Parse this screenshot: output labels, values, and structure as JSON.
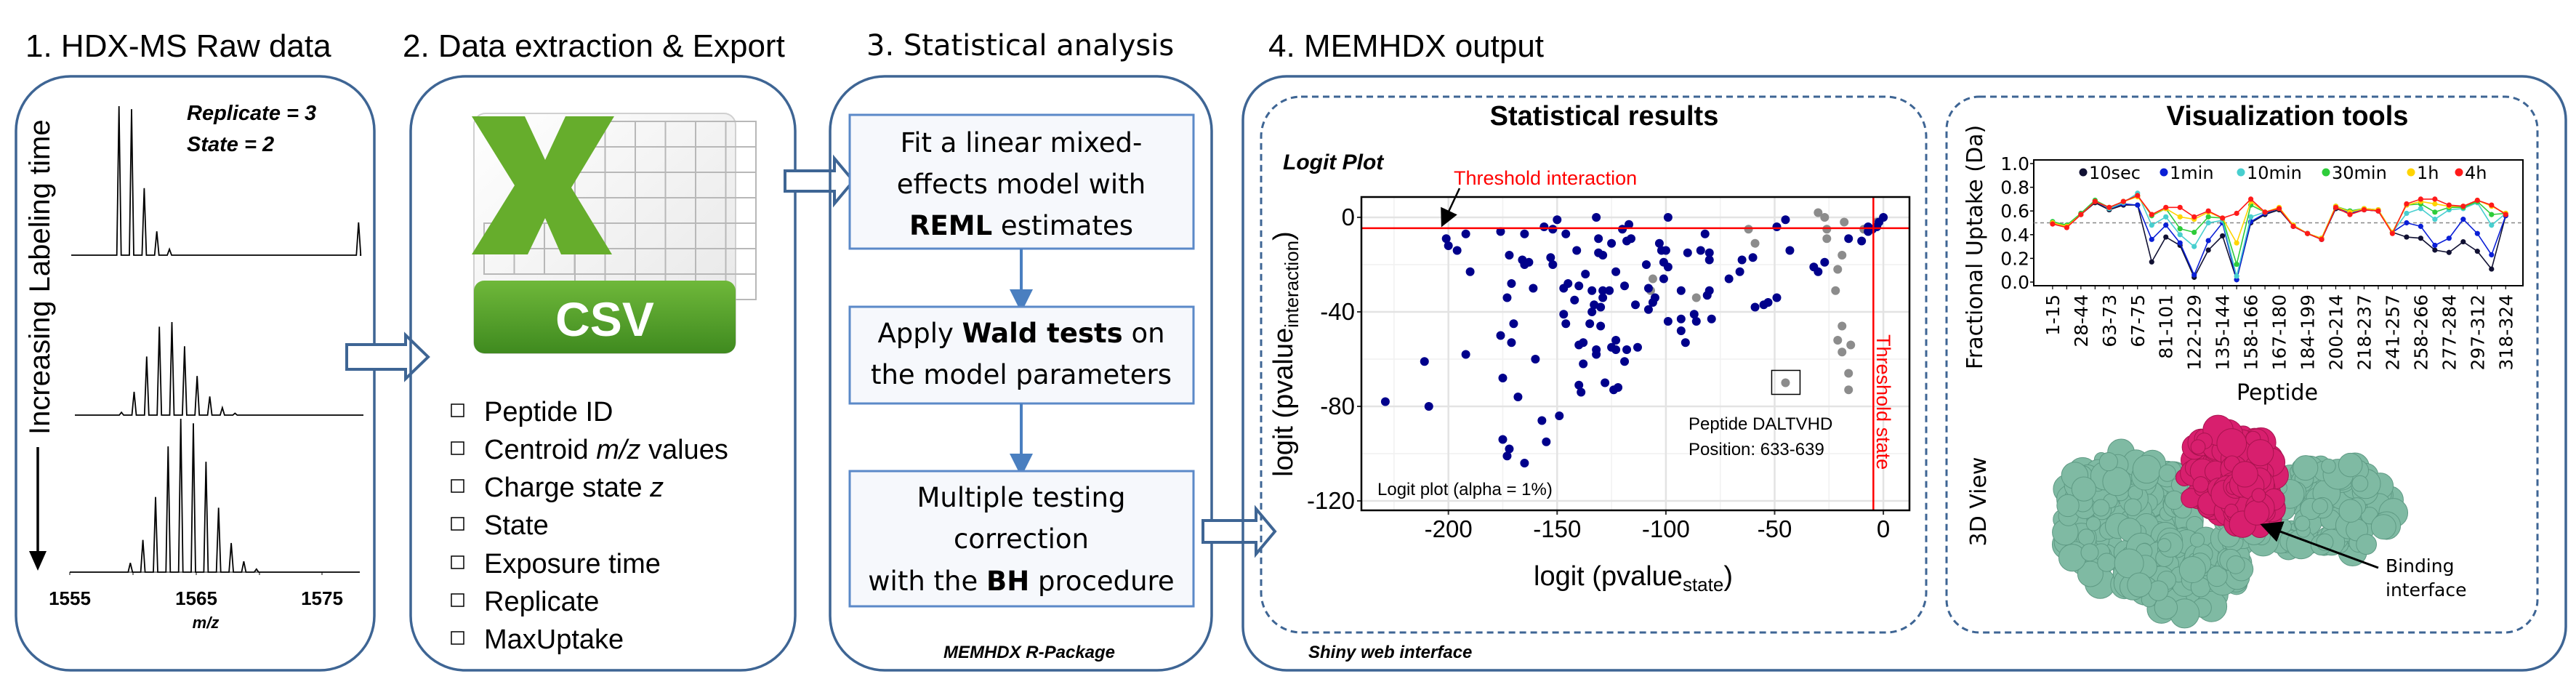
{
  "colors": {
    "panel": "#3e6594",
    "step_box": "#5b89c8",
    "threshold": "#ff0000",
    "significant": "#00008b",
    "non_significant": "#8c8c8c",
    "protein": "#7fbaa3",
    "interface": "#d81f6e",
    "csv_green": "#5aa02c"
  },
  "panel1": {
    "title": "1. HDX-MS Raw data",
    "replicate": "Replicate = 3",
    "state": "State = 2",
    "time_label": "Increasing Labeling time",
    "x_ticks": [
      "1555",
      "1565",
      "1575"
    ],
    "x_label": "m/z",
    "spectra": [
      {
        "start_mz": 1558.9,
        "spacing": 1.0,
        "intensities": [
          100,
          98,
          45,
          16,
          4
        ],
        "extra_peak": {
          "mz": 1577.9,
          "intensity": 22
        }
      },
      {
        "start_mz": 1559.1,
        "spacing": 1.0,
        "intensities": [
          3,
          25,
          63,
          95,
          100,
          74,
          42,
          20,
          8,
          2
        ]
      },
      {
        "start_mz": 1559.8,
        "spacing": 1.0,
        "intensities": [
          6,
          21,
          49,
          82,
          100,
          97,
          72,
          42,
          19,
          7,
          2
        ]
      }
    ]
  },
  "panel2": {
    "title": "2. Data extraction & Export",
    "icon_label": "CSV",
    "items": [
      {
        "pre": "Peptide ID",
        "ital": "",
        "post": ""
      },
      {
        "pre": "Centroid ",
        "ital": "m/z",
        "post": " values"
      },
      {
        "pre": "Charge state ",
        "ital": "z",
        "post": ""
      },
      {
        "pre": "State",
        "ital": "",
        "post": ""
      },
      {
        "pre": "Exposure time",
        "ital": "",
        "post": ""
      },
      {
        "pre": "Replicate",
        "ital": "",
        "post": ""
      },
      {
        "pre": "MaxUptake",
        "ital": "",
        "post": ""
      }
    ]
  },
  "panel3": {
    "title": "3. Statistical analysis",
    "step1": {
      "l1": "Fit a linear mixed-",
      "l2": "effects model with",
      "l3b": "REML",
      "l3": " estimates"
    },
    "step2": {
      "l1a": "Apply ",
      "l1b": "Wald tests",
      "l1c": " on",
      "l2": "the model parameters"
    },
    "step3": {
      "l1": "Multiple testing",
      "l2": "correction",
      "l3a": "with the ",
      "l3b": "BH",
      "l3c": " procedure"
    },
    "footer": "MEMHDX R-Package"
  },
  "panel4": {
    "title": "4. MEMHDX output",
    "footer": "Shiny web interface",
    "stats_title": "Statistical results",
    "viz_title": "Visualization tools",
    "view3d_label": "3D View",
    "binding_l1": "Binding",
    "binding_l2": "interface"
  },
  "chart_data": [
    {
      "type": "scatter",
      "title": "Logit Plot",
      "xlabel": "logit (pvalue",
      "xlabel_sub": "state",
      "ylabel": "logit (pvalue",
      "ylabel_sub": "interaction",
      "xlim": [
        -240,
        12
      ],
      "ylim": [
        -124,
        8.6
      ],
      "x_ticks": [
        -200,
        -150,
        -100,
        -50,
        0
      ],
      "y_ticks": [
        0,
        -40,
        -80,
        -120
      ],
      "grid": true,
      "threshold_interaction": -4.6,
      "threshold_state": -4.6,
      "threshold_interaction_label": "Threshold interaction",
      "threshold_state_label": "Threshold state",
      "note": "Logit plot (alpha = 1%)",
      "highlight": {
        "x": -45,
        "y": -70,
        "l1": "Peptide DALTVHD",
        "l2": "Position: 633-639"
      },
      "significant": [
        [
          -229,
          -78
        ],
        [
          -211,
          -61
        ],
        [
          -209,
          -80
        ],
        [
          -201,
          -9
        ],
        [
          -200,
          -12
        ],
        [
          -196,
          -14
        ],
        [
          -192,
          -7
        ],
        [
          -190,
          -23
        ],
        [
          -192,
          -58
        ],
        [
          -176,
          -50
        ],
        [
          -176,
          -6
        ],
        [
          -175,
          -68
        ],
        [
          -175,
          -94
        ],
        [
          -173,
          -101
        ],
        [
          -173,
          -34
        ],
        [
          -172,
          -16
        ],
        [
          -172,
          -98
        ],
        [
          -171,
          -53
        ],
        [
          -171,
          -28
        ],
        [
          -170,
          -45
        ],
        [
          -168,
          -76
        ],
        [
          -166,
          -18
        ],
        [
          -165,
          -104
        ],
        [
          -165,
          -7
        ],
        [
          -165,
          -20
        ],
        [
          -163,
          -19
        ],
        [
          -161,
          -30
        ],
        [
          -160,
          -60
        ],
        [
          -157,
          -86
        ],
        [
          -156,
          -4
        ],
        [
          -155,
          -95
        ],
        [
          -153,
          -17
        ],
        [
          -152,
          -5
        ],
        [
          -152,
          -20
        ],
        [
          -150,
          -1
        ],
        [
          -149,
          -84
        ],
        [
          -147,
          -30
        ],
        [
          -147,
          -41
        ],
        [
          -146,
          -7
        ],
        [
          -146,
          -45
        ],
        [
          -145,
          -28
        ],
        [
          -142,
          -35
        ],
        [
          -141,
          -14
        ],
        [
          -140,
          -54
        ],
        [
          -140,
          -29
        ],
        [
          -140,
          -71
        ],
        [
          -139,
          -74
        ],
        [
          -138,
          -53
        ],
        [
          -138,
          -62
        ],
        [
          -137,
          -24
        ],
        [
          -135,
          -45
        ],
        [
          -134,
          -31
        ],
        [
          -134,
          -40
        ],
        [
          -133,
          -37
        ],
        [
          -132,
          -56
        ],
        [
          -132,
          -58
        ],
        [
          -132,
          0
        ],
        [
          -131,
          -9
        ],
        [
          -131,
          -15
        ],
        [
          -130,
          -38
        ],
        [
          -130,
          -46
        ],
        [
          -129,
          -31
        ],
        [
          -129,
          -16
        ],
        [
          -129,
          -34
        ],
        [
          -128,
          -70
        ],
        [
          -126,
          -31
        ],
        [
          -125,
          -11
        ],
        [
          -125,
          -55
        ],
        [
          -124,
          -73
        ],
        [
          -123,
          -23
        ],
        [
          -123,
          -52
        ],
        [
          -123,
          -56
        ],
        [
          -122,
          -72
        ],
        [
          -120,
          -5
        ],
        [
          -119,
          -29
        ],
        [
          -119,
          -61
        ],
        [
          -118,
          -56
        ],
        [
          -118,
          -10
        ],
        [
          -117,
          -3
        ],
        [
          -116,
          -9
        ],
        [
          -114,
          -37
        ],
        [
          -113,
          -55
        ],
        [
          -109,
          -20
        ],
        [
          -108,
          -39
        ],
        [
          -108,
          -30
        ],
        [
          -106,
          -36
        ],
        [
          -105,
          -34
        ],
        [
          -103,
          -11
        ],
        [
          -102,
          -14
        ],
        [
          -101,
          -19
        ],
        [
          -101,
          -26
        ],
        [
          -100,
          -14
        ],
        [
          -99,
          0
        ],
        [
          -99,
          -44
        ],
        [
          -99,
          -21
        ],
        [
          -93,
          -31
        ],
        [
          -93,
          -43
        ],
        [
          -93,
          -48
        ],
        [
          -91,
          -53
        ],
        [
          -90,
          -15
        ],
        [
          -87,
          -41
        ],
        [
          -86,
          -44
        ],
        [
          -84,
          -14
        ],
        [
          -82,
          -7
        ],
        [
          -81,
          -33
        ],
        [
          -80,
          -18
        ],
        [
          -80,
          -15
        ],
        [
          -80,
          -31
        ],
        [
          -79,
          -43
        ],
        [
          -71,
          -26
        ],
        [
          -66,
          -23
        ],
        [
          -65,
          -18
        ],
        [
          -60,
          -17
        ],
        [
          -59,
          -38
        ],
        [
          -55,
          -37
        ],
        [
          -53,
          -36
        ],
        [
          -49,
          -4
        ],
        [
          -49,
          -34
        ],
        [
          -45,
          -1
        ],
        [
          -43,
          -14
        ],
        [
          -32,
          -21
        ],
        [
          -30,
          -23
        ],
        [
          -27,
          -19
        ],
        [
          -16,
          -9
        ],
        [
          -10,
          -10
        ],
        [
          -7,
          -6
        ],
        [
          -7,
          -4
        ],
        [
          -5,
          -5
        ],
        [
          -3,
          -4
        ],
        [
          -2,
          -2
        ],
        [
          0,
          0
        ]
      ],
      "non_significant": [
        [
          -106,
          -26
        ],
        [
          -107,
          -31
        ],
        [
          -86,
          -34
        ],
        [
          -62,
          -5
        ],
        [
          -59,
          -11
        ],
        [
          -45,
          -70
        ],
        [
          -30,
          2
        ],
        [
          -27,
          0
        ],
        [
          -26,
          -9
        ],
        [
          -26,
          -5
        ],
        [
          -18,
          -2
        ],
        [
          -19,
          -16
        ],
        [
          -21,
          -22
        ],
        [
          -22,
          -31
        ],
        [
          -19,
          -46
        ],
        [
          -21,
          -52
        ],
        [
          -19,
          -57
        ],
        [
          -15,
          -54
        ],
        [
          -16,
          -66
        ],
        [
          -16,
          -73
        ],
        [
          -9,
          -5
        ],
        [
          -3,
          -2
        ]
      ]
    },
    {
      "type": "line",
      "ylabel": "Fractional Uptake (Da)",
      "xlabel": "Peptide",
      "ylim": [
        0,
        1.0
      ],
      "y_ticks": [
        "0.0",
        "0.2",
        "0.4",
        "0.6",
        "0.8",
        "1.0"
      ],
      "reference_line": 0.5,
      "legend_position": "top",
      "tick_labels": [
        "1-15",
        "28-44",
        "63-73",
        "67-75",
        "81-101",
        "122-129",
        "135-144",
        "158-166",
        "167-180",
        "184-199",
        "200-214",
        "218-237",
        "241-257",
        "258-266",
        "277-284",
        "297-312",
        "318-324"
      ],
      "series": [
        {
          "name": "10sec",
          "color": "#111133",
          "values": [
            0.5,
            0.47,
            0.57,
            0.67,
            0.61,
            0.65,
            0.65,
            0.17,
            0.38,
            0.31,
            0.04,
            0.27,
            0.39,
            0.02,
            0.5,
            0.57,
            0.61,
            0.47,
            0.41,
            0.36,
            0.62,
            0.58,
            0.61,
            0.6,
            0.42,
            0.38,
            0.37,
            0.27,
            0.25,
            0.34,
            0.26,
            0.11,
            0.56
          ]
        },
        {
          "name": "1min",
          "color": "#0a1fd6",
          "values": [
            0.5,
            0.47,
            0.57,
            0.68,
            0.62,
            0.66,
            0.65,
            0.36,
            0.48,
            0.33,
            0.06,
            0.35,
            0.5,
            0.02,
            0.51,
            0.58,
            0.62,
            0.47,
            0.41,
            0.36,
            0.63,
            0.58,
            0.61,
            0.6,
            0.42,
            0.5,
            0.47,
            0.31,
            0.37,
            0.53,
            0.41,
            0.23,
            0.56
          ]
        },
        {
          "name": "10min",
          "color": "#48cfcf",
          "values": [
            0.51,
            0.48,
            0.58,
            0.69,
            0.62,
            0.67,
            0.75,
            0.48,
            0.55,
            0.4,
            0.3,
            0.5,
            0.52,
            0.05,
            0.55,
            0.59,
            0.62,
            0.48,
            0.41,
            0.37,
            0.64,
            0.6,
            0.62,
            0.61,
            0.42,
            0.58,
            0.62,
            0.53,
            0.61,
            0.62,
            0.67,
            0.48,
            0.58
          ]
        },
        {
          "name": "30min",
          "color": "#2ecc3a",
          "values": [
            0.51,
            0.48,
            0.58,
            0.69,
            0.63,
            0.68,
            0.73,
            0.56,
            0.62,
            0.45,
            0.42,
            0.55,
            0.54,
            0.15,
            0.65,
            0.59,
            0.62,
            0.48,
            0.41,
            0.37,
            0.64,
            0.6,
            0.62,
            0.61,
            0.42,
            0.65,
            0.66,
            0.59,
            0.63,
            0.63,
            0.68,
            0.57,
            0.58
          ]
        },
        {
          "name": "1h",
          "color": "#ffd400",
          "values": [
            0.5,
            0.47,
            0.57,
            0.68,
            0.63,
            0.68,
            0.72,
            0.57,
            0.62,
            0.55,
            0.53,
            0.59,
            0.54,
            0.33,
            0.68,
            0.59,
            0.63,
            0.48,
            0.41,
            0.37,
            0.64,
            0.59,
            0.62,
            0.61,
            0.42,
            0.65,
            0.68,
            0.66,
            0.64,
            0.64,
            0.69,
            0.64,
            0.58
          ]
        },
        {
          "name": "4h",
          "color": "#ff1a1a",
          "values": [
            0.49,
            0.46,
            0.57,
            0.68,
            0.63,
            0.68,
            0.73,
            0.57,
            0.63,
            0.63,
            0.55,
            0.6,
            0.54,
            0.58,
            0.7,
            0.59,
            0.62,
            0.47,
            0.41,
            0.36,
            0.63,
            0.57,
            0.61,
            0.6,
            0.41,
            0.66,
            0.7,
            0.7,
            0.65,
            0.64,
            0.69,
            0.65,
            0.57
          ]
        }
      ]
    }
  ]
}
